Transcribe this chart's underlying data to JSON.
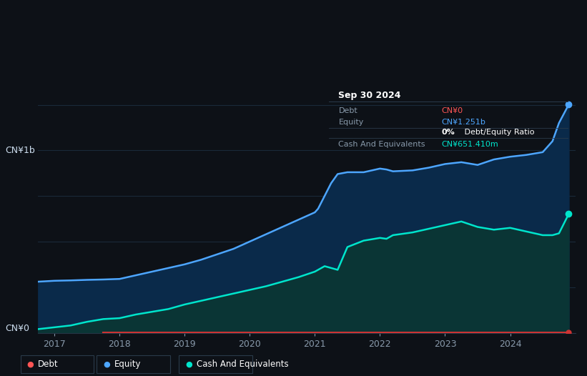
{
  "background_color": "#0d1117",
  "plot_bg_color": "#111820",
  "title_box": {
    "date": "Sep 30 2024",
    "box_color": "#111820",
    "border_color": "#2a3a4a"
  },
  "y_label_top": "CN¥1b",
  "y_label_bottom": "CN¥0",
  "x_ticks": [
    "2017",
    "2018",
    "2019",
    "2020",
    "2021",
    "2022",
    "2023",
    "2024"
  ],
  "x_tick_vals": [
    2017,
    2018,
    2019,
    2020,
    2021,
    2022,
    2023,
    2024
  ],
  "legend": [
    {
      "label": "Debt",
      "color": "#ff5555"
    },
    {
      "label": "Equity",
      "color": "#4da6ff"
    },
    {
      "label": "Cash And Equivalents",
      "color": "#00e5cc"
    }
  ],
  "line_colors": {
    "debt": "#cc3333",
    "equity": "#4da6ff",
    "cash": "#00e5cc"
  },
  "fill_colors": {
    "equity": "#0a2a4a",
    "cash": "#0a3535"
  },
  "equity_data": {
    "x": [
      2016.75,
      2017.0,
      2017.25,
      2017.5,
      2017.75,
      2018.0,
      2018.25,
      2018.5,
      2018.75,
      2019.0,
      2019.25,
      2019.5,
      2019.75,
      2020.0,
      2020.25,
      2020.5,
      2020.75,
      2021.0,
      2021.05,
      2021.15,
      2021.25,
      2021.35,
      2021.5,
      2021.75,
      2022.0,
      2022.1,
      2022.2,
      2022.5,
      2022.75,
      2023.0,
      2023.25,
      2023.5,
      2023.75,
      2024.0,
      2024.25,
      2024.5,
      2024.65,
      2024.75,
      2024.9
    ],
    "y": [
      0.28,
      0.285,
      0.287,
      0.29,
      0.292,
      0.295,
      0.315,
      0.335,
      0.355,
      0.375,
      0.4,
      0.43,
      0.46,
      0.5,
      0.54,
      0.58,
      0.62,
      0.66,
      0.68,
      0.75,
      0.82,
      0.87,
      0.88,
      0.88,
      0.9,
      0.895,
      0.885,
      0.89,
      0.905,
      0.925,
      0.935,
      0.92,
      0.95,
      0.965,
      0.975,
      0.99,
      1.05,
      1.15,
      1.251
    ]
  },
  "cash_data": {
    "x": [
      2016.75,
      2017.0,
      2017.25,
      2017.5,
      2017.75,
      2018.0,
      2018.25,
      2018.5,
      2018.75,
      2019.0,
      2019.25,
      2019.5,
      2019.75,
      2020.0,
      2020.25,
      2020.5,
      2020.75,
      2021.0,
      2021.05,
      2021.15,
      2021.25,
      2021.35,
      2021.5,
      2021.75,
      2022.0,
      2022.1,
      2022.2,
      2022.5,
      2022.75,
      2023.0,
      2023.25,
      2023.5,
      2023.75,
      2024.0,
      2024.25,
      2024.5,
      2024.65,
      2024.75,
      2024.9
    ],
    "y": [
      0.02,
      0.03,
      0.04,
      0.06,
      0.075,
      0.08,
      0.1,
      0.115,
      0.13,
      0.155,
      0.175,
      0.195,
      0.215,
      0.235,
      0.255,
      0.28,
      0.305,
      0.335,
      0.345,
      0.365,
      0.355,
      0.345,
      0.47,
      0.505,
      0.52,
      0.515,
      0.535,
      0.55,
      0.57,
      0.59,
      0.61,
      0.58,
      0.565,
      0.575,
      0.555,
      0.535,
      0.535,
      0.545,
      0.6514
    ]
  },
  "debt_data": {
    "x": [
      2017.75,
      2024.9
    ],
    "y": [
      0.002,
      0.002
    ]
  },
  "ylim": [
    0,
    1.35
  ],
  "xlim": [
    2016.75,
    2025.0
  ]
}
